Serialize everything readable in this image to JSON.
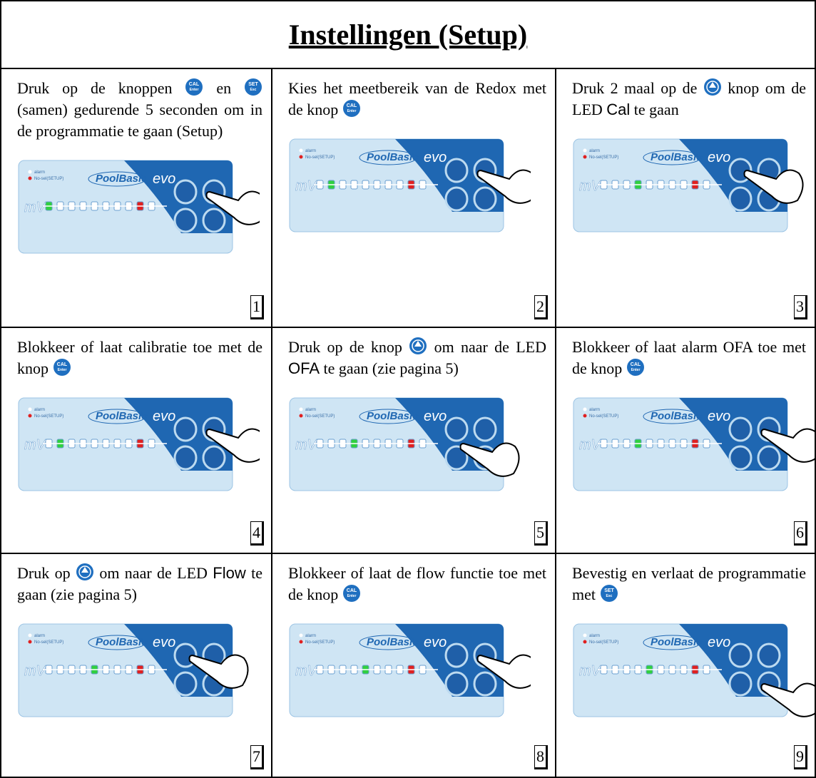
{
  "title": "Instellingen (Setup)",
  "device": {
    "brand": "PoolBasic",
    "model": "evo",
    "unit": "mV",
    "leds": [
      "alarm",
      "No-sel(SETUP)"
    ]
  },
  "cells": [
    {
      "number": "1",
      "text": [
        "Druk op de knoppen ",
        [
          "CAL",
          "Enter"
        ],
        " en ",
        [
          "SET",
          "Esc"
        ],
        " (samen) gedurende 5 seconden om in de programmatie te gaan (Setup)"
      ]
    },
    {
      "number": "2",
      "text": [
        "Kies het meetbereik van de Redox met de knop ",
        [
          "CAL",
          "Enter"
        ]
      ]
    },
    {
      "number": "3",
      "text": [
        "Druk 2 maal op de ",
        [],
        " knop om de LED ",
        {
          "sans": "Cal"
        },
        " te gaan"
      ]
    },
    {
      "number": "4",
      "text": [
        "Blokkeer of laat calibratie toe met de knop ",
        [
          "CAL",
          "Enter"
        ]
      ]
    },
    {
      "number": "5",
      "text": [
        "Druk op de knop ",
        [],
        " om naar de LED ",
        {
          "sans": "OFA"
        },
        " te gaan (zie pagina 5)"
      ]
    },
    {
      "number": "6",
      "text": [
        "Blokkeer of laat alarm OFA toe met de knop ",
        [
          "CAL",
          "Enter"
        ]
      ]
    },
    {
      "number": "7",
      "text": [
        "Druk op ",
        [],
        " om naar de LED ",
        {
          "sans": "Flow"
        },
        " te gaan (zie pagina 5)"
      ]
    },
    {
      "number": "8",
      "text": [
        "Blokkeer of laat de flow functie toe met de knop ",
        [
          "CAL",
          "Enter"
        ]
      ]
    },
    {
      "number": "9",
      "text": [
        "Bevestig en verlaat de programmatie met ",
        [
          "SET",
          "Esc"
        ]
      ]
    }
  ]
}
